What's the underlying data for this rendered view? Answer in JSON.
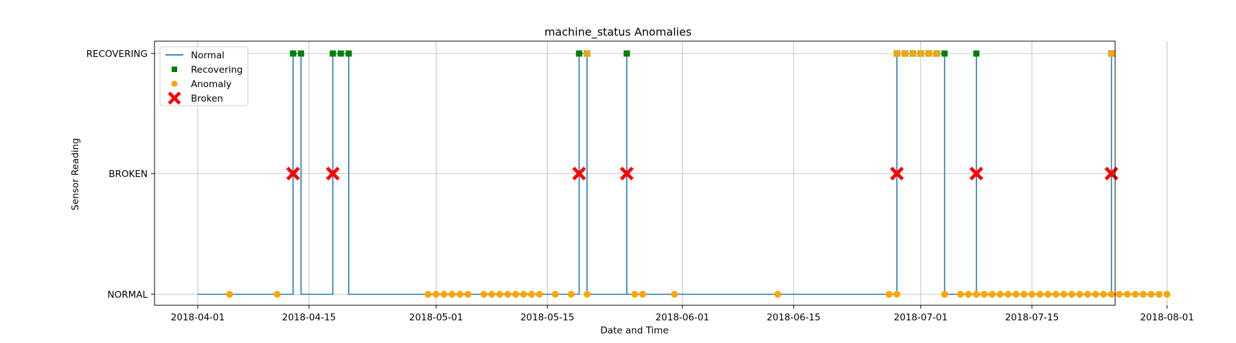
{
  "chart_data": {
    "type": "line",
    "title": "machine_status Anomalies",
    "xlabel": "Date and Time",
    "ylabel": "Sensor Reading",
    "categories_y": [
      "NORMAL",
      "BROKEN",
      "RECOVERING"
    ],
    "x_ticks": [
      "2018-04-01",
      "2018-04-15",
      "2018-05-01",
      "2018-05-15",
      "2018-06-01",
      "2018-06-15",
      "2018-07-01",
      "2018-07-15",
      "2018-08-01"
    ],
    "xlim": [
      "2017-03-25",
      "2018-08-07"
    ],
    "grid": true,
    "legend_position": "top-left",
    "series": [
      {
        "name": "Normal",
        "kind": "step-line",
        "color": "#1f77b4",
        "points": [
          [
            "2018-04-01",
            "NORMAL"
          ],
          [
            "2018-04-13",
            "NORMAL"
          ],
          [
            "2018-04-13",
            "RECOVERING"
          ],
          [
            "2018-04-14",
            "RECOVERING"
          ],
          [
            "2018-04-14",
            "NORMAL"
          ],
          [
            "2018-04-18",
            "NORMAL"
          ],
          [
            "2018-04-18",
            "RECOVERING"
          ],
          [
            "2018-04-20",
            "RECOVERING"
          ],
          [
            "2018-04-20",
            "NORMAL"
          ],
          [
            "2018-05-19",
            "NORMAL"
          ],
          [
            "2018-05-19",
            "RECOVERING"
          ],
          [
            "2018-05-20",
            "RECOVERING"
          ],
          [
            "2018-05-20",
            "NORMAL"
          ],
          [
            "2018-05-25",
            "NORMAL"
          ],
          [
            "2018-05-25",
            "RECOVERING"
          ],
          [
            "2018-05-25",
            "RECOVERING"
          ],
          [
            "2018-05-25",
            "NORMAL"
          ],
          [
            "2018-06-28",
            "NORMAL"
          ],
          [
            "2018-06-28",
            "RECOVERING"
          ],
          [
            "2018-07-04",
            "RECOVERING"
          ],
          [
            "2018-07-04",
            "NORMAL"
          ],
          [
            "2018-07-08",
            "NORMAL"
          ],
          [
            "2018-07-08",
            "RECOVERING"
          ],
          [
            "2018-07-08",
            "RECOVERING"
          ],
          [
            "2018-07-08",
            "NORMAL"
          ],
          [
            "2018-07-25",
            "NORMAL"
          ],
          [
            "2018-07-25",
            "RECOVERING"
          ],
          [
            "2018-07-25",
            "RECOVERING"
          ],
          [
            "2018-07-25",
            "NORMAL"
          ],
          [
            "2018-07-31",
            "NORMAL"
          ]
        ]
      },
      {
        "name": "Recovering",
        "kind": "square-markers",
        "color": "#008000",
        "points": [
          [
            "2018-04-13",
            "RECOVERING"
          ],
          [
            "2018-04-13",
            "RECOVERING"
          ],
          [
            "2018-04-14",
            "RECOVERING"
          ],
          [
            "2018-04-18",
            "RECOVERING"
          ],
          [
            "2018-04-19",
            "RECOVERING"
          ],
          [
            "2018-04-20",
            "RECOVERING"
          ],
          [
            "2018-05-19",
            "RECOVERING"
          ],
          [
            "2018-05-19",
            "RECOVERING"
          ],
          [
            "2018-05-20",
            "RECOVERING"
          ],
          [
            "2018-05-25",
            "RECOVERING"
          ],
          [
            "2018-05-25",
            "RECOVERING"
          ],
          [
            "2018-06-28",
            "RECOVERING"
          ],
          [
            "2018-06-29",
            "RECOVERING"
          ],
          [
            "2018-06-30",
            "RECOVERING"
          ],
          [
            "2018-07-01",
            "RECOVERING"
          ],
          [
            "2018-07-02",
            "RECOVERING"
          ],
          [
            "2018-07-03",
            "RECOVERING"
          ],
          [
            "2018-07-04",
            "RECOVERING"
          ],
          [
            "2018-07-08",
            "RECOVERING"
          ],
          [
            "2018-07-25",
            "RECOVERING"
          ]
        ]
      },
      {
        "name": "Anomaly",
        "kind": "circle-markers",
        "color": "#ffa500",
        "points": [
          [
            "2018-04-05",
            "NORMAL"
          ],
          [
            "2018-04-11",
            "NORMAL"
          ],
          [
            "2018-04-30",
            "NORMAL"
          ],
          [
            "2018-05-01",
            "NORMAL"
          ],
          [
            "2018-05-02",
            "NORMAL"
          ],
          [
            "2018-05-03",
            "NORMAL"
          ],
          [
            "2018-05-04",
            "NORMAL"
          ],
          [
            "2018-05-05",
            "NORMAL"
          ],
          [
            "2018-05-07",
            "NORMAL"
          ],
          [
            "2018-05-08",
            "NORMAL"
          ],
          [
            "2018-05-09",
            "NORMAL"
          ],
          [
            "2018-05-10",
            "NORMAL"
          ],
          [
            "2018-05-11",
            "NORMAL"
          ],
          [
            "2018-05-12",
            "NORMAL"
          ],
          [
            "2018-05-13",
            "NORMAL"
          ],
          [
            "2018-05-14",
            "NORMAL"
          ],
          [
            "2018-05-16",
            "NORMAL"
          ],
          [
            "2018-05-18",
            "NORMAL"
          ],
          [
            "2018-05-20",
            "RECOVERING"
          ],
          [
            "2018-05-20",
            "NORMAL"
          ],
          [
            "2018-05-26",
            "NORMAL"
          ],
          [
            "2018-05-27",
            "NORMAL"
          ],
          [
            "2018-05-31",
            "NORMAL"
          ],
          [
            "2018-06-13",
            "NORMAL"
          ],
          [
            "2018-06-27",
            "NORMAL"
          ],
          [
            "2018-06-28",
            "NORMAL"
          ],
          [
            "2018-06-28",
            "RECOVERING"
          ],
          [
            "2018-06-29",
            "RECOVERING"
          ],
          [
            "2018-06-30",
            "RECOVERING"
          ],
          [
            "2018-07-01",
            "RECOVERING"
          ],
          [
            "2018-07-02",
            "RECOVERING"
          ],
          [
            "2018-07-03",
            "RECOVERING"
          ],
          [
            "2018-07-04",
            "NORMAL"
          ],
          [
            "2018-07-06",
            "NORMAL"
          ],
          [
            "2018-07-07",
            "NORMAL"
          ],
          [
            "2018-07-08",
            "NORMAL"
          ],
          [
            "2018-07-09",
            "NORMAL"
          ],
          [
            "2018-07-10",
            "NORMAL"
          ],
          [
            "2018-07-11",
            "NORMAL"
          ],
          [
            "2018-07-12",
            "NORMAL"
          ],
          [
            "2018-07-13",
            "NORMAL"
          ],
          [
            "2018-07-14",
            "NORMAL"
          ],
          [
            "2018-07-15",
            "NORMAL"
          ],
          [
            "2018-07-16",
            "NORMAL"
          ],
          [
            "2018-07-17",
            "NORMAL"
          ],
          [
            "2018-07-18",
            "NORMAL"
          ],
          [
            "2018-07-19",
            "NORMAL"
          ],
          [
            "2018-07-20",
            "NORMAL"
          ],
          [
            "2018-07-21",
            "NORMAL"
          ],
          [
            "2018-07-22",
            "NORMAL"
          ],
          [
            "2018-07-23",
            "NORMAL"
          ],
          [
            "2018-07-24",
            "NORMAL"
          ],
          [
            "2018-07-25",
            "NORMAL"
          ],
          [
            "2018-07-25",
            "RECOVERING"
          ],
          [
            "2018-07-26",
            "NORMAL"
          ],
          [
            "2018-07-27",
            "NORMAL"
          ],
          [
            "2018-07-28",
            "NORMAL"
          ],
          [
            "2018-07-29",
            "NORMAL"
          ],
          [
            "2018-07-30",
            "NORMAL"
          ],
          [
            "2018-07-31",
            "NORMAL"
          ],
          [
            "2018-08-01",
            "NORMAL"
          ]
        ]
      },
      {
        "name": "Broken",
        "kind": "x-markers",
        "color": "#ff0000",
        "points": [
          [
            "2018-04-13",
            "BROKEN"
          ],
          [
            "2018-04-18",
            "BROKEN"
          ],
          [
            "2018-05-19",
            "BROKEN"
          ],
          [
            "2018-05-25",
            "BROKEN"
          ],
          [
            "2018-06-28",
            "BROKEN"
          ],
          [
            "2018-07-08",
            "BROKEN"
          ],
          [
            "2018-07-25",
            "BROKEN"
          ]
        ]
      }
    ]
  }
}
